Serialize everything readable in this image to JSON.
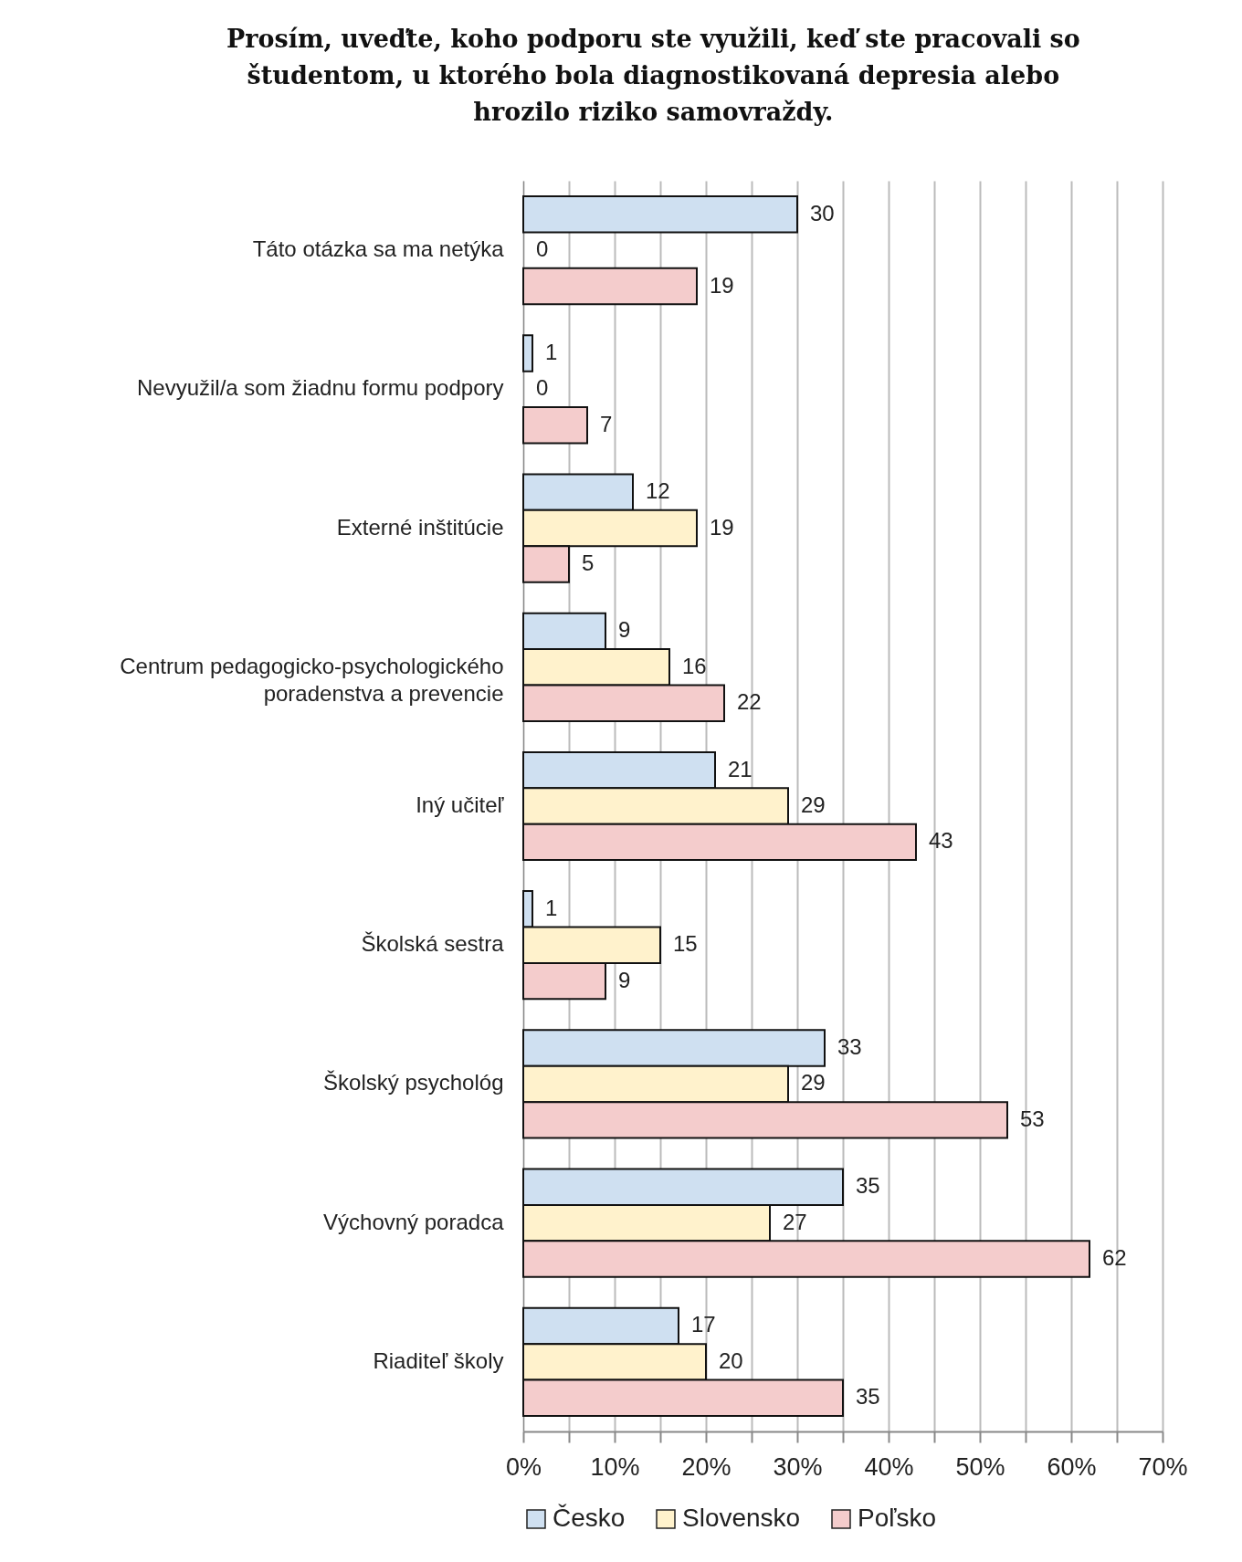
{
  "chart_data": {
    "type": "bar",
    "orientation": "horizontal",
    "title": "Prosím, uveďte, koho podporu ste využili, keď ste pracovali so študentom, u ktorého bola diagnostikovaná depresia alebo hrozilo riziko samovraždy.",
    "categories": [
      "Táto otázka sa ma netýka",
      "Nevyužil/a som žiadnu formu podpory",
      "Externé inštitúcie",
      "Centrum pedagogicko-psychologického poradenstva a prevencie",
      "Iný učiteľ",
      "Školská sestra",
      "Školský psychológ",
      "Výchovný poradca",
      "Riaditeľ školy"
    ],
    "series": [
      {
        "name": "Česko",
        "color": "#cfe0f1",
        "values": [
          30,
          1,
          12,
          9,
          21,
          1,
          33,
          35,
          17
        ]
      },
      {
        "name": "Slovensko",
        "color": "#fff2cc",
        "values": [
          0,
          0,
          19,
          16,
          29,
          15,
          29,
          27,
          20
        ]
      },
      {
        "name": "Poľsko",
        "color": "#f4cccc",
        "values": [
          19,
          7,
          5,
          22,
          43,
          9,
          53,
          62,
          35
        ]
      }
    ],
    "xlim": [
      0,
      70
    ],
    "xticks": [
      {
        "value": 0,
        "label": "0%"
      },
      {
        "value": 5,
        "label": null
      },
      {
        "value": 10,
        "label": "10%"
      },
      {
        "value": 15,
        "label": null
      },
      {
        "value": 20,
        "label": "20%"
      },
      {
        "value": 25,
        "label": null
      },
      {
        "value": 30,
        "label": "30%"
      },
      {
        "value": 35,
        "label": null
      },
      {
        "value": 40,
        "label": "40%"
      },
      {
        "value": 45,
        "label": null
      },
      {
        "value": 50,
        "label": "50%"
      },
      {
        "value": 55,
        "label": null
      },
      {
        "value": 60,
        "label": "60%"
      },
      {
        "value": 65,
        "label": null
      },
      {
        "value": 70,
        "label": "70%"
      }
    ],
    "grid": "x",
    "data_labels": true,
    "legend": "bottom"
  }
}
